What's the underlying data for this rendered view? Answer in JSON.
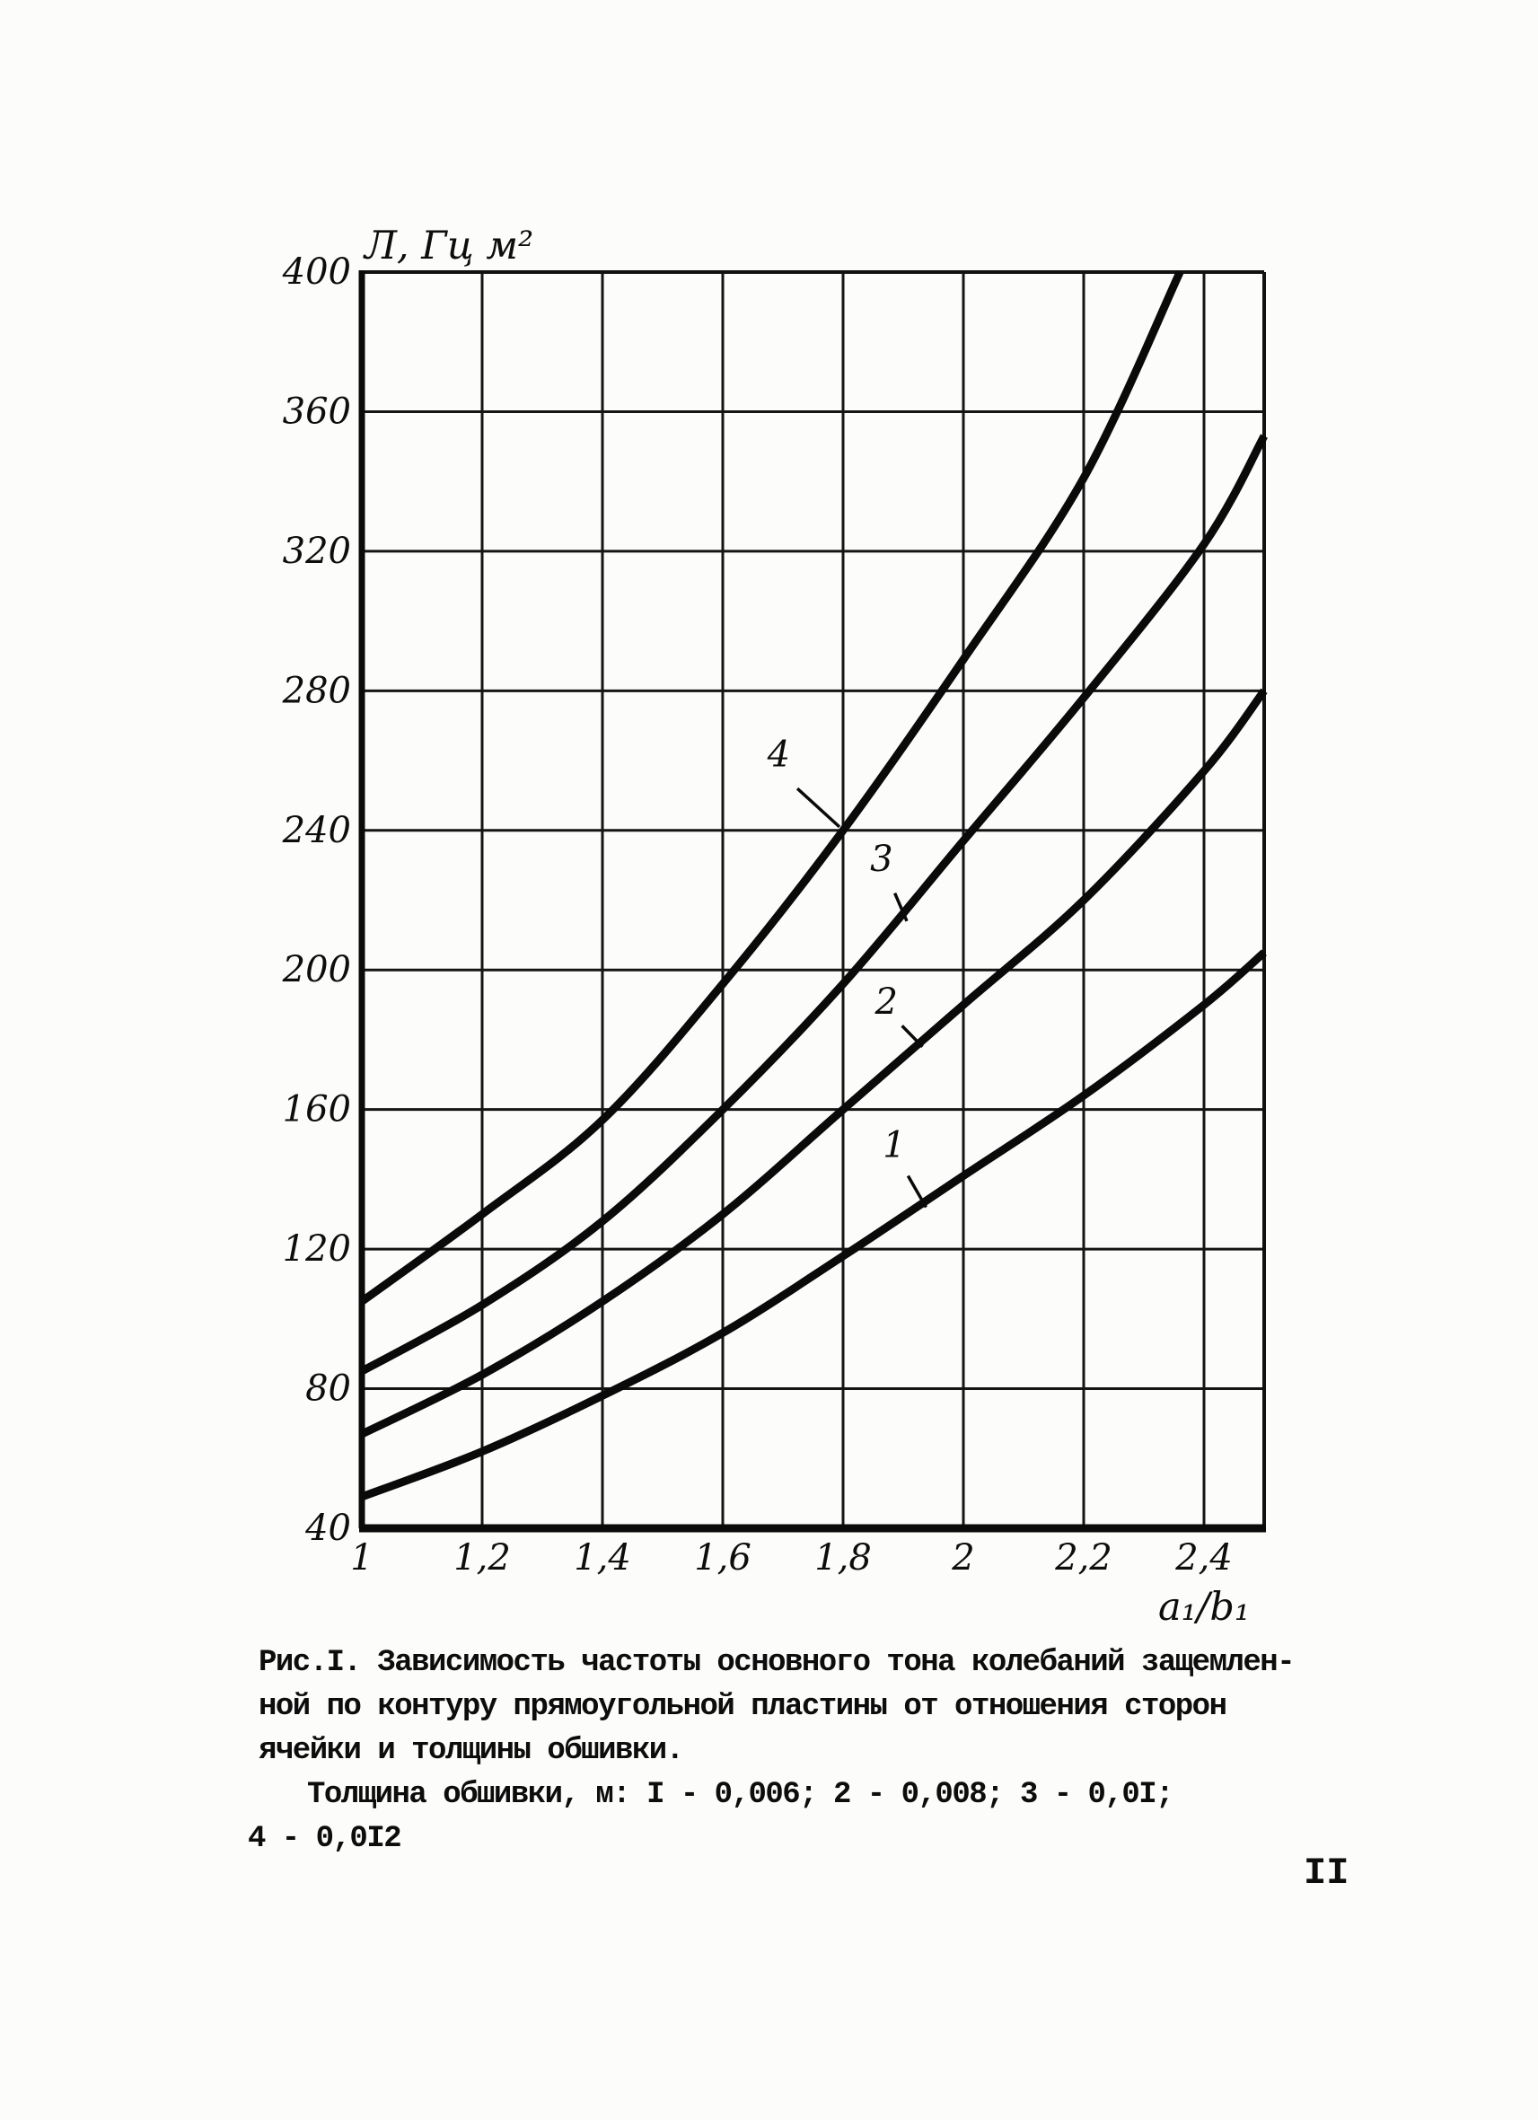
{
  "page": {
    "number": "II"
  },
  "chart_data": {
    "type": "line",
    "title": "",
    "ylabel": "Л, Гц м²",
    "xlabel": "a₁/b₁",
    "xlim": [
      1,
      2.5
    ],
    "ylim": [
      40,
      400
    ],
    "grid": true,
    "legend_position": "none",
    "x_tick_labels": [
      "1",
      "1,2",
      "1,4",
      "1,6",
      "1,8",
      "2",
      "2,2",
      "2,4"
    ],
    "x_tick_values": [
      1,
      1.2,
      1.4,
      1.6,
      1.8,
      2,
      2.2,
      2.4
    ],
    "y_tick_labels": [
      "40",
      "80",
      "120",
      "160",
      "200",
      "240",
      "280",
      "320",
      "360",
      "400"
    ],
    "y_tick_values": [
      40,
      80,
      120,
      160,
      200,
      240,
      280,
      320,
      360,
      400
    ],
    "series": [
      {
        "name": "1",
        "skin_thickness_m": "0,006",
        "x": [
          1,
          1.2,
          1.4,
          1.6,
          1.8,
          2,
          2.2,
          2.4,
          2.5
        ],
        "y": [
          49,
          62,
          78,
          96,
          118,
          141,
          164,
          190,
          205
        ],
        "label": {
          "text": "1",
          "x": 1.885,
          "y": 150,
          "leader": [
            [
              1.908,
              141
            ],
            [
              1.938,
              132
            ]
          ]
        }
      },
      {
        "name": "2",
        "skin_thickness_m": "0,008",
        "x": [
          1,
          1.2,
          1.4,
          1.6,
          1.8,
          2,
          2.2,
          2.4,
          2.5
        ],
        "y": [
          67,
          84,
          105,
          130,
          160,
          190,
          220,
          257,
          280
        ],
        "label": {
          "text": "2",
          "x": 1.872,
          "y": 191,
          "leader": [
            [
              1.898,
              184
            ],
            [
              1.932,
              178
            ]
          ]
        }
      },
      {
        "name": "3",
        "skin_thickness_m": "0,01",
        "x": [
          1,
          1.2,
          1.4,
          1.6,
          1.8,
          2,
          2.2,
          2.4,
          2.5
        ],
        "y": [
          85,
          104,
          128,
          160,
          196,
          237,
          278,
          322,
          353
        ],
        "label": {
          "text": "3",
          "x": 1.864,
          "y": 232,
          "leader": [
            [
              1.886,
              222
            ],
            [
              1.906,
              214
            ]
          ]
        }
      },
      {
        "name": "4",
        "skin_thickness_m": "0,012",
        "x": [
          1,
          1.2,
          1.4,
          1.6,
          1.8,
          2,
          2.2,
          2.36
        ],
        "y": [
          105,
          130,
          157,
          196,
          240,
          289,
          341,
          400
        ],
        "label": {
          "text": "4",
          "x": 1.693,
          "y": 262,
          "leader": [
            [
              1.724,
              252
            ],
            [
              1.794,
              241
            ]
          ]
        }
      }
    ]
  },
  "caption": {
    "lines": [
      "Рис.I. Зависимость частоты основного тона колебаний защемлен-",
      "ной по контуру прямоугольной пластины от отношения сторон",
      "ячейки и толщины обшивки.",
      "Толщина обшивки, м: I - 0,006; 2 - 0,008; 3 - 0,0I;",
      "4 - 0,0I2"
    ]
  }
}
